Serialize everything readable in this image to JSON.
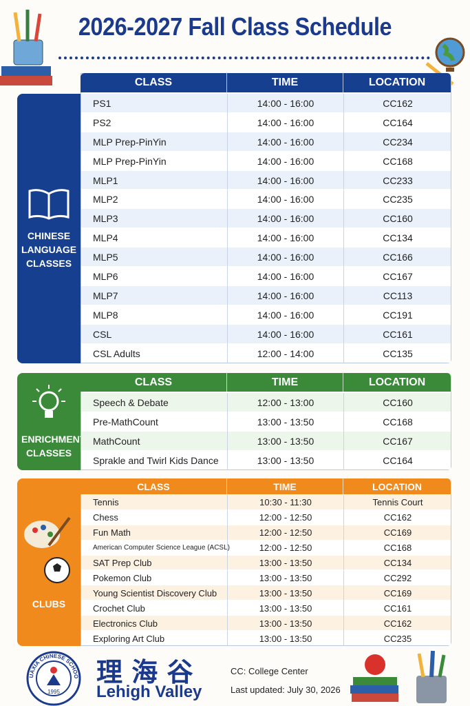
{
  "title": "2026-2027 Fall Class Schedule",
  "sections": [
    {
      "label": "CHINESE LANGUAGE CLASSES",
      "columns": [
        "CLASS",
        "TIME",
        "LOCATION"
      ],
      "rows": [
        [
          "PS1",
          "14:00 - 16:00",
          "CC162"
        ],
        [
          "PS2",
          "14:00 - 16:00",
          "CC164"
        ],
        [
          "MLP Prep-PinYin",
          "14:00 - 16:00",
          "CC234"
        ],
        [
          "MLP Prep-PinYin",
          "14:00 - 16:00",
          "CC168"
        ],
        [
          "MLP1",
          "14:00 - 16:00",
          "CC233"
        ],
        [
          "MLP2",
          "14:00 - 16:00",
          "CC235"
        ],
        [
          "MLP3",
          "14:00 - 16:00",
          "CC160"
        ],
        [
          "MLP4",
          "14:00 - 16:00",
          "CC134"
        ],
        [
          "MLP5",
          "14:00 - 16:00",
          "CC166"
        ],
        [
          "MLP6",
          "14:00 - 16:00",
          "CC167"
        ],
        [
          "MLP7",
          "14:00 - 16:00",
          "CC113"
        ],
        [
          "MLP8",
          "14:00 - 16:00",
          "CC191"
        ],
        [
          "CSL",
          "14:00 - 16:00",
          "CC161"
        ],
        [
          "CSL Adults",
          "12:00 - 14:00",
          "CC135"
        ]
      ]
    },
    {
      "label": "ENRICHMENT CLASSES",
      "columns": [
        "CLASS",
        "TIME",
        "LOCATION"
      ],
      "rows": [
        [
          "Speech & Debate",
          "12:00 - 13:00",
          "CC160"
        ],
        [
          "Pre-MathCount",
          "13:00 - 13:50",
          "CC168"
        ],
        [
          "MathCount",
          "13:00 - 13:50",
          "CC167"
        ],
        [
          "Sprakle and Twirl Kids Dance",
          "13:00 - 13:50",
          "CC164"
        ]
      ]
    },
    {
      "label": "CLUBS",
      "columns": [
        "CLASS",
        "TIME",
        "LOCATION"
      ],
      "rows": [
        [
          "Tennis",
          "10:30 - 11:30",
          "Tennis Court"
        ],
        [
          "Chess",
          "12:00 - 12:50",
          "CC162"
        ],
        [
          "Fun Math",
          "12:00 - 12:50",
          "CC169"
        ],
        [
          "American Computer Science League (ACSL)",
          "12:00 - 12:50",
          "CC168"
        ],
        [
          "SAT Prep Club",
          "13:00 - 13:50",
          "CC134"
        ],
        [
          "Pokemon Club",
          "13:00 - 13:50",
          "CC292"
        ],
        [
          "Young Scientist Discovery Club",
          "13:00 - 13:50",
          "CC169"
        ],
        [
          "Crochet Club",
          "13:00 - 13:50",
          "CC161"
        ],
        [
          "Electronics Club",
          "13:00 - 13:50",
          "CC162"
        ],
        [
          "Exploring Art Club",
          "13:00 - 13:50",
          "CC235"
        ]
      ]
    }
  ],
  "footer": {
    "logo_text": "HUAXIA CHINESE SCHOOL",
    "logo_year": "1995",
    "chinese_name": "理 海 谷",
    "english_name": "Lehigh Valley",
    "note": "CC: College Center",
    "updated": "Last updated: July 30, 2026"
  }
}
